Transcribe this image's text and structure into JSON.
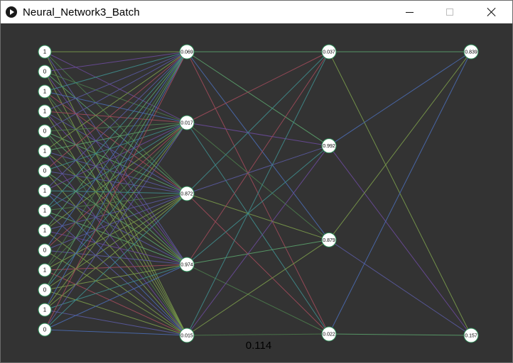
{
  "window": {
    "title": "Neural_Network3_Batch",
    "icon": "play-circle-icon",
    "controls": [
      "minimize-icon",
      "maximize-icon",
      "close-icon"
    ]
  },
  "network": {
    "input_values": [
      "1",
      "0",
      "1",
      "1",
      "0",
      "1",
      "0",
      "1",
      "1",
      "1",
      "0",
      "1",
      "0",
      "1",
      "0"
    ],
    "hidden1_values": [
      "0.069",
      "0.017",
      "0.872",
      "0.974",
      "0.015"
    ],
    "hidden2_values": [
      "0.037",
      "0.992",
      "0.879",
      "0.022"
    ],
    "output_values": [
      "0.839",
      "0.157"
    ],
    "loss": "0.114",
    "colors": {
      "background": "#333333",
      "node_fill": "#ffffff",
      "node_stroke": "#2e8b57",
      "edge_palette": [
        "#4b7a4b",
        "#5a5aa0",
        "#3f8c8c",
        "#7a9a4a",
        "#6a4a9a",
        "#a04a5a",
        "#4a6ab0",
        "#5aa06a"
      ]
    }
  }
}
